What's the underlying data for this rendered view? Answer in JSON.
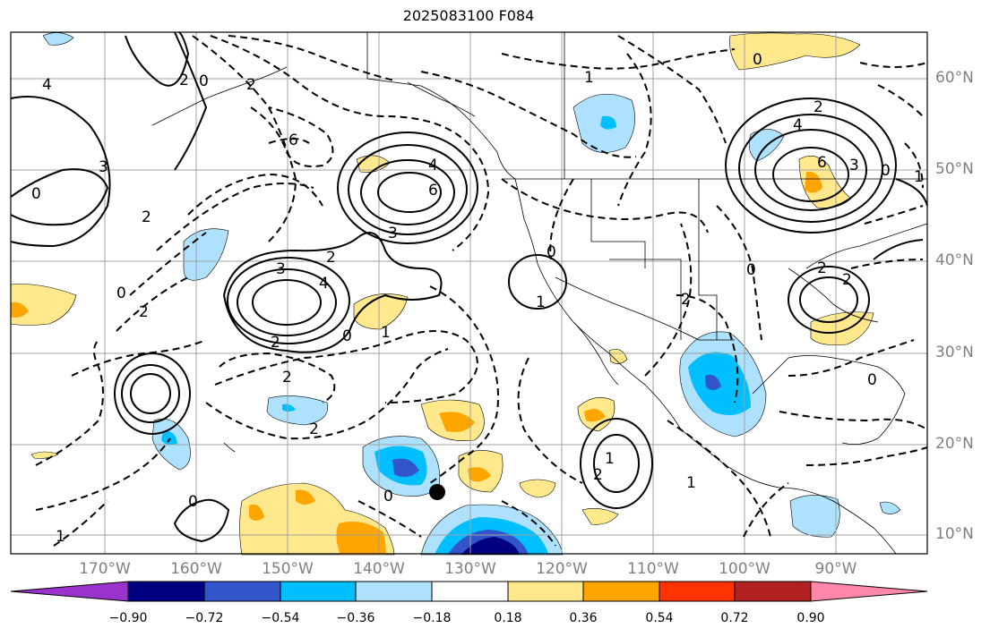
{
  "title": "2025083100 F084",
  "lat_labels": [
    "60°N",
    "50°N",
    "40°N",
    "30°N",
    "20°N",
    "10°N"
  ],
  "lon_labels": [
    "170°W",
    "160°W",
    "150°W",
    "140°W",
    "130°W",
    "120°W",
    "110°W",
    "100°W",
    "90°W"
  ],
  "colorbar": {
    "ticks": [
      "−0.90",
      "−0.72",
      "−0.54",
      "−0.36",
      "−0.18",
      "0.18",
      "0.36",
      "0.54",
      "0.72",
      "0.90"
    ],
    "colors": [
      "#9933cc",
      "#000080",
      "#3355cc",
      "#00bfff",
      "#ade1fd",
      "#ffffff",
      "#ffe98c",
      "#ffa500",
      "#ff3300",
      "#b22222",
      "#ff88aa"
    ]
  },
  "contour_labels": [
    "4",
    "0",
    "2",
    "3",
    "2",
    "0",
    "2",
    "0",
    "6",
    "2",
    "6",
    "4",
    "3",
    "3",
    "4",
    "2",
    "0",
    "1",
    "2",
    "2",
    "0",
    "1",
    "2",
    "1",
    "0",
    "0",
    "2",
    "1",
    "2",
    "1",
    "2",
    "4",
    "6",
    "3",
    "0",
    "1",
    "0",
    "2",
    "2",
    "0",
    "0",
    "1"
  ],
  "marker": "storm-center-dot"
}
